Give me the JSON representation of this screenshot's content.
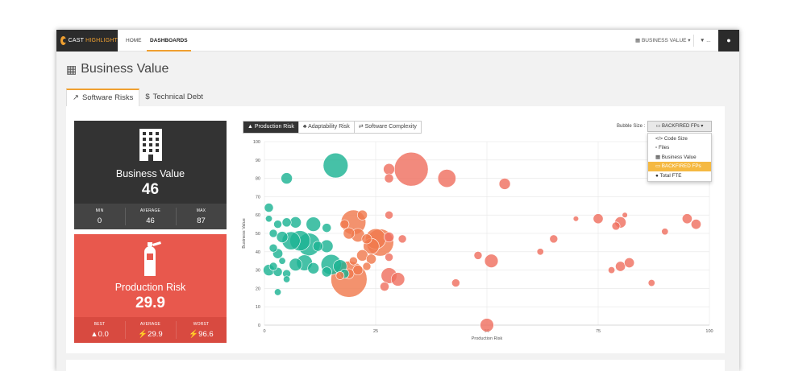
{
  "nav": {
    "logo_prefix": "CAST",
    "logo_suffix": "HIGHLIGHT",
    "home": "HOME",
    "dashboards": "DASHBOARDS",
    "business_value_menu": "BUSINESS VALUE",
    "filter_menu": "...",
    "user_icon": "user-icon"
  },
  "page": {
    "title": "Business Value",
    "title_icon": "building-icon"
  },
  "tabs": [
    {
      "label": "Software Risks",
      "icon": "line-chart-icon",
      "active": true
    },
    {
      "label": "Technical Debt",
      "icon": "dollar-icon",
      "active": false
    }
  ],
  "cards": {
    "business_value": {
      "title": "Business Value",
      "value": "46",
      "icon": "building-icon",
      "stats": [
        {
          "label": "MIN",
          "value": "0"
        },
        {
          "label": "AVERAGE",
          "value": "46"
        },
        {
          "label": "MAX",
          "value": "87"
        }
      ]
    },
    "production_risk": {
      "title": "Production Risk",
      "value": "29.9",
      "icon": "fire-extinguisher-icon",
      "stats": [
        {
          "label": "BEST",
          "value": "0.0",
          "icon": "thumbs-up-icon"
        },
        {
          "label": "AVERAGE",
          "value": "29.9",
          "icon": "bolt-icon"
        },
        {
          "label": "WORST",
          "value": "96.6",
          "icon": "bolt-icon"
        }
      ]
    }
  },
  "risk_buttons": [
    {
      "label": "Production Risk",
      "active": true
    },
    {
      "label": "Adaptability Risk",
      "active": false
    },
    {
      "label": "Software Complexity",
      "active": false
    }
  ],
  "bubble_size": {
    "label": "Bubble Size :",
    "selected": "BACKFIRED FPs",
    "options": [
      "Code Size",
      "Files",
      "Business Value",
      "BACKFIRED FPs",
      "Total FTE"
    ]
  },
  "colors": {
    "accent": "#f0a030",
    "teal": "#1db394",
    "orange": "#f07a4e",
    "salmon": "#ef7060",
    "dark": "#333333",
    "red": "#e8584d"
  },
  "chart_data": {
    "type": "scatter",
    "xlabel": "Production Risk",
    "ylabel": "Business Value",
    "xlim": [
      0,
      100
    ],
    "ylim": [
      0,
      100
    ],
    "xticks": [
      0,
      25,
      50,
      75,
      100
    ],
    "yticks": [
      0,
      10,
      20,
      30,
      40,
      50,
      60,
      70,
      80,
      90,
      100
    ],
    "grid": true,
    "points": [
      {
        "x": 16,
        "y": 87,
        "s": 5.5,
        "c": "teal"
      },
      {
        "x": 5,
        "y": 80,
        "s": 2.5,
        "c": "teal"
      },
      {
        "x": 1,
        "y": 64,
        "s": 2,
        "c": "teal"
      },
      {
        "x": 1,
        "y": 58,
        "s": 1.5,
        "c": "teal"
      },
      {
        "x": 3,
        "y": 55,
        "s": 1.8,
        "c": "teal"
      },
      {
        "x": 5,
        "y": 56,
        "s": 2,
        "c": "teal"
      },
      {
        "x": 7,
        "y": 56,
        "s": 2.5,
        "c": "teal"
      },
      {
        "x": 11,
        "y": 55,
        "s": 3.2,
        "c": "teal"
      },
      {
        "x": 14,
        "y": 53,
        "s": 2,
        "c": "teal"
      },
      {
        "x": 2,
        "y": 50,
        "s": 1.8,
        "c": "teal"
      },
      {
        "x": 4,
        "y": 48,
        "s": 2.5,
        "c": "teal"
      },
      {
        "x": 6,
        "y": 46,
        "s": 4,
        "c": "teal"
      },
      {
        "x": 8,
        "y": 46,
        "s": 4.5,
        "c": "teal"
      },
      {
        "x": 10,
        "y": 44,
        "s": 5,
        "c": "teal"
      },
      {
        "x": 12,
        "y": 43,
        "s": 2.2,
        "c": "teal"
      },
      {
        "x": 14,
        "y": 43,
        "s": 2.8,
        "c": "teal"
      },
      {
        "x": 2,
        "y": 42,
        "s": 1.8,
        "c": "teal"
      },
      {
        "x": 3,
        "y": 39,
        "s": 2.2,
        "c": "teal"
      },
      {
        "x": 4,
        "y": 35,
        "s": 1.5,
        "c": "teal"
      },
      {
        "x": 2,
        "y": 32,
        "s": 1.8,
        "c": "teal"
      },
      {
        "x": 1,
        "y": 30,
        "s": 2.5,
        "c": "teal"
      },
      {
        "x": 3,
        "y": 29,
        "s": 2,
        "c": "teal"
      },
      {
        "x": 5,
        "y": 28,
        "s": 1.8,
        "c": "teal"
      },
      {
        "x": 7,
        "y": 33,
        "s": 2.8,
        "c": "teal"
      },
      {
        "x": 9,
        "y": 34,
        "s": 3.5,
        "c": "teal"
      },
      {
        "x": 11,
        "y": 31,
        "s": 2.5,
        "c": "teal"
      },
      {
        "x": 14,
        "y": 29,
        "s": 2.2,
        "c": "teal"
      },
      {
        "x": 15,
        "y": 33,
        "s": 4.5,
        "c": "teal"
      },
      {
        "x": 17,
        "y": 32,
        "s": 3,
        "c": "teal"
      },
      {
        "x": 18,
        "y": 28,
        "s": 2,
        "c": "teal"
      },
      {
        "x": 5,
        "y": 25,
        "s": 1.5,
        "c": "teal"
      },
      {
        "x": 3,
        "y": 18,
        "s": 1.5,
        "c": "teal"
      },
      {
        "x": 18,
        "y": 55,
        "s": 2,
        "c": "orange"
      },
      {
        "x": 20,
        "y": 56,
        "s": 5.5,
        "c": "orange"
      },
      {
        "x": 22,
        "y": 60,
        "s": 2.2,
        "c": "orange"
      },
      {
        "x": 19,
        "y": 50,
        "s": 2.5,
        "c": "orange"
      },
      {
        "x": 21,
        "y": 49,
        "s": 3,
        "c": "orange"
      },
      {
        "x": 23,
        "y": 47,
        "s": 2.2,
        "c": "orange"
      },
      {
        "x": 25,
        "y": 47,
        "s": 4.5,
        "c": "orange"
      },
      {
        "x": 26,
        "y": 45,
        "s": 6,
        "c": "orange"
      },
      {
        "x": 24,
        "y": 43,
        "s": 3.5,
        "c": "orange"
      },
      {
        "x": 22,
        "y": 38,
        "s": 2.5,
        "c": "orange"
      },
      {
        "x": 24,
        "y": 36,
        "s": 2.2,
        "c": "orange"
      },
      {
        "x": 20,
        "y": 35,
        "s": 1.8,
        "c": "orange"
      },
      {
        "x": 23,
        "y": 32,
        "s": 1.8,
        "c": "orange"
      },
      {
        "x": 21,
        "y": 30,
        "s": 2.2,
        "c": "orange"
      },
      {
        "x": 19,
        "y": 28,
        "s": 2.2,
        "c": "orange"
      },
      {
        "x": 17,
        "y": 27,
        "s": 1.8,
        "c": "orange"
      },
      {
        "x": 19,
        "y": 25,
        "s": 8,
        "c": "orange"
      },
      {
        "x": 28,
        "y": 85,
        "s": 2.5,
        "c": "salmon"
      },
      {
        "x": 33,
        "y": 85,
        "s": 7.5,
        "c": "salmon"
      },
      {
        "x": 41,
        "y": 80,
        "s": 4,
        "c": "salmon"
      },
      {
        "x": 28,
        "y": 80,
        "s": 2,
        "c": "salmon"
      },
      {
        "x": 54,
        "y": 77,
        "s": 2.5,
        "c": "salmon"
      },
      {
        "x": 28,
        "y": 60,
        "s": 1.8,
        "c": "salmon"
      },
      {
        "x": 28,
        "y": 48,
        "s": 2.2,
        "c": "salmon"
      },
      {
        "x": 31,
        "y": 47,
        "s": 1.8,
        "c": "salmon"
      },
      {
        "x": 28,
        "y": 37,
        "s": 1.8,
        "c": "salmon"
      },
      {
        "x": 28,
        "y": 27,
        "s": 3.5,
        "c": "salmon"
      },
      {
        "x": 30,
        "y": 25,
        "s": 3,
        "c": "salmon"
      },
      {
        "x": 27,
        "y": 21,
        "s": 2,
        "c": "salmon"
      },
      {
        "x": 43,
        "y": 23,
        "s": 1.8,
        "c": "salmon"
      },
      {
        "x": 48,
        "y": 38,
        "s": 1.8,
        "c": "salmon"
      },
      {
        "x": 51,
        "y": 35,
        "s": 3,
        "c": "salmon"
      },
      {
        "x": 62,
        "y": 40,
        "s": 1.5,
        "c": "salmon"
      },
      {
        "x": 65,
        "y": 47,
        "s": 1.8,
        "c": "salmon"
      },
      {
        "x": 70,
        "y": 58,
        "s": 1.2,
        "c": "salmon"
      },
      {
        "x": 75,
        "y": 58,
        "s": 2.2,
        "c": "salmon"
      },
      {
        "x": 80,
        "y": 56,
        "s": 2.5,
        "c": "salmon"
      },
      {
        "x": 79,
        "y": 54,
        "s": 1.8,
        "c": "salmon"
      },
      {
        "x": 81,
        "y": 60,
        "s": 1.2,
        "c": "salmon"
      },
      {
        "x": 90,
        "y": 51,
        "s": 1.5,
        "c": "salmon"
      },
      {
        "x": 95,
        "y": 58,
        "s": 2.2,
        "c": "salmon"
      },
      {
        "x": 97,
        "y": 55,
        "s": 2.2,
        "c": "salmon"
      },
      {
        "x": 78,
        "y": 30,
        "s": 1.5,
        "c": "salmon"
      },
      {
        "x": 80,
        "y": 32,
        "s": 2.2,
        "c": "salmon"
      },
      {
        "x": 82,
        "y": 34,
        "s": 2.2,
        "c": "salmon"
      },
      {
        "x": 87,
        "y": 23,
        "s": 1.5,
        "c": "salmon"
      },
      {
        "x": 50,
        "y": 0,
        "s": 3,
        "c": "salmon"
      }
    ]
  }
}
